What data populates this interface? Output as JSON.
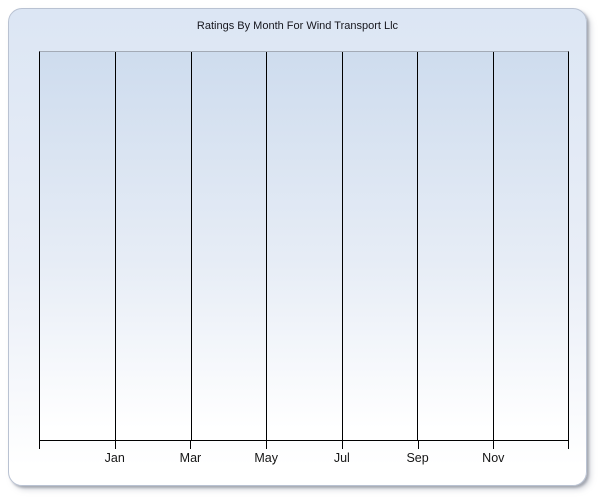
{
  "chart_data": {
    "type": "line",
    "title": "Ratings By Month For Wind Transport Llc",
    "xlabel": "",
    "ylabel": "",
    "categories": [
      "Jan",
      "Mar",
      "May",
      "Jul",
      "Sep",
      "Nov"
    ],
    "x_tick_labels": [
      "",
      "Jan",
      "Mar",
      "May",
      "Jul",
      "Sep",
      "Nov",
      ""
    ],
    "series": [],
    "grid": "vertical",
    "legend": "none"
  },
  "colors": {
    "page_bg": "#ffffff",
    "panel_bg_top": "#dce6f4",
    "panel_bg_bottom": "#ffffff",
    "panel_border": "#b9c2d2",
    "plot_bg_top": "#cedcee",
    "plot_bg_bottom": "#ffffff",
    "plot_top_border": "#a3aab6",
    "grid_line": "#000000",
    "axis_line": "#000000",
    "title_text": "#16161d",
    "label_text": "#151515"
  }
}
